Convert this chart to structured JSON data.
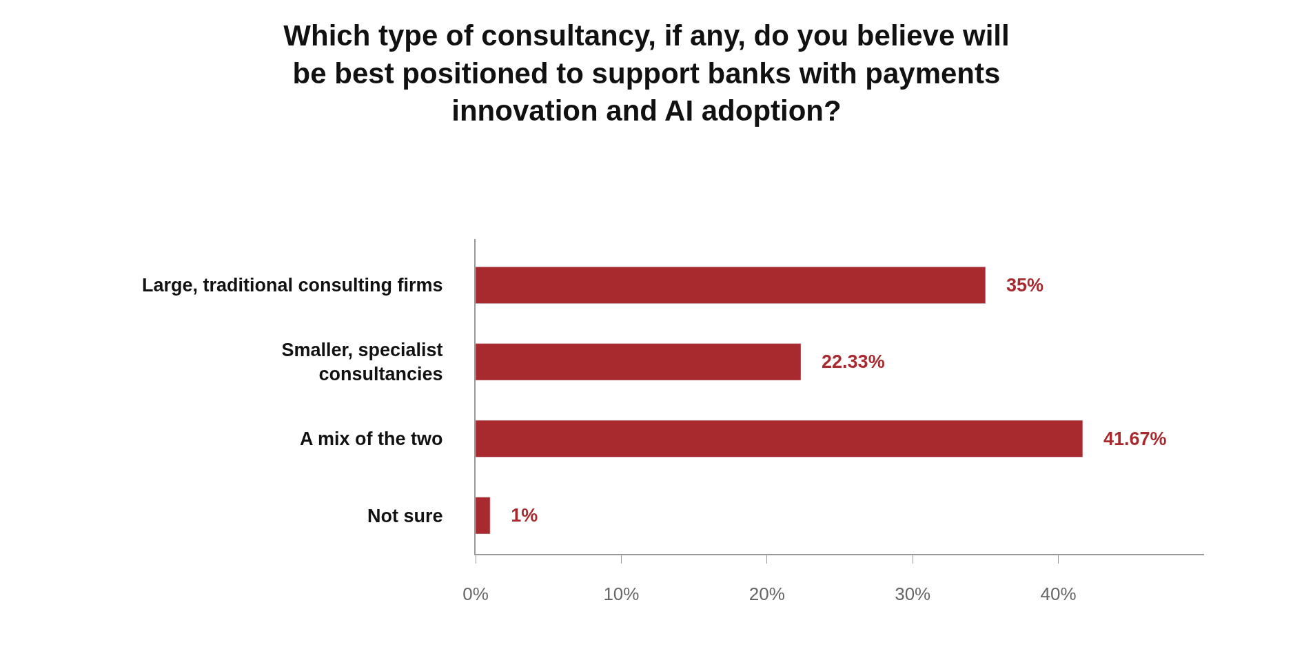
{
  "chart_data": {
    "type": "bar",
    "orientation": "horizontal",
    "title": "Which type of consultancy, if any, do you believe will\nbe best positioned to support banks with payments\ninnovation and AI adoption?",
    "categories": [
      "Large, traditional consulting firms",
      "Smaller, specialist\nconsultancies",
      "A mix of the two",
      "Not sure"
    ],
    "values": [
      35,
      22.33,
      41.67,
      1
    ],
    "value_labels": [
      "35%",
      "22.33%",
      "41.67%",
      "1%"
    ],
    "color": "#a82a2f",
    "xlim": [
      0,
      50
    ],
    "xticks": [
      {
        "value": 0,
        "label": "0%"
      },
      {
        "value": 10,
        "label": "10%"
      },
      {
        "value": 20,
        "label": "20%"
      },
      {
        "value": 30,
        "label": "30%"
      },
      {
        "value": 40,
        "label": "40%"
      }
    ],
    "legend": false
  }
}
